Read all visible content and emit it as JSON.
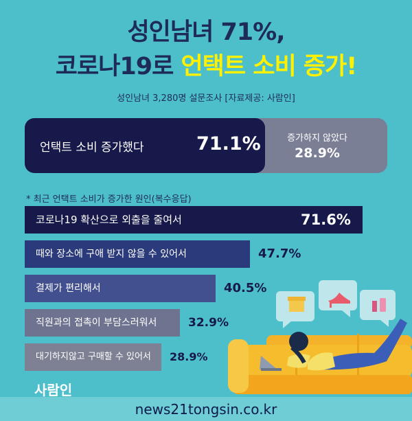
{
  "title_line1": "성인남녀 71%,",
  "title_line2_dark": "코로나19로 ",
  "title_line2_yellow": "언택트 소비 증가!",
  "subtitle": "성인남녀 3,280명 설문조사 [자료제공: 사람인]",
  "comparison": {
    "increased_label": "언택트 소비 증가했다",
    "increased_value": "71.1%",
    "not_increased_label": "증가하지 않았다",
    "not_increased_value": "28.9%"
  },
  "note": "* 최근 언택트 소비가 증가한 원인(복수응답)",
  "colors": {
    "background": "#4dbfcb",
    "navy": "#16194a",
    "yellow": "#fff100",
    "gray": "#7a7f95"
  },
  "chart_data": {
    "type": "bar",
    "orientation": "horizontal",
    "categories": [
      "코로나19 확산으로 외출을 줄여서",
      "때와 장소에 구애 받지 않을 수 있어서",
      "결제가 편리해서",
      "직원과의 접촉이 부담스러워서",
      "대기하지않고 구매할 수 있어서"
    ],
    "values": [
      71.6,
      47.7,
      40.5,
      32.9,
      28.9
    ],
    "labels": [
      "71.6%",
      "47.7%",
      "40.5%",
      "32.9%",
      "28.9%"
    ],
    "unit": "%"
  },
  "logo": "사람인",
  "footer": "news21tongsin.co.kr"
}
